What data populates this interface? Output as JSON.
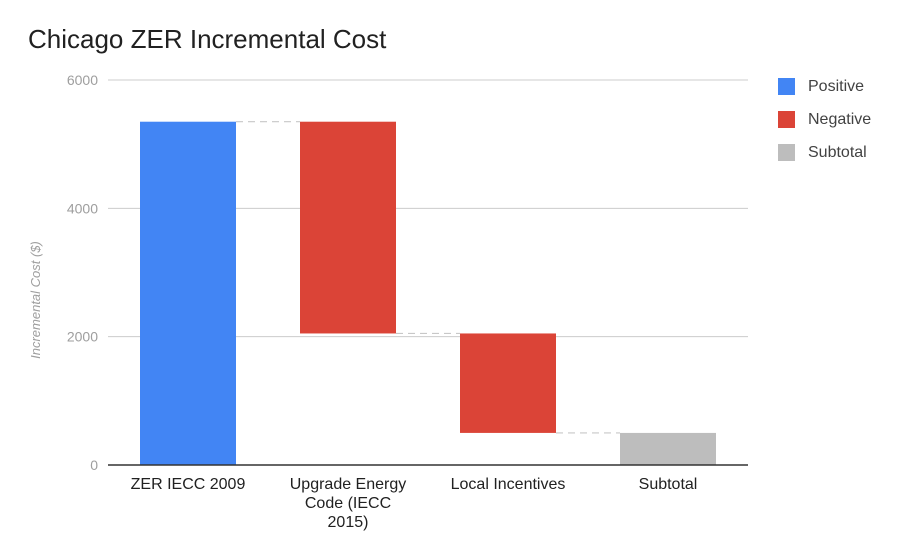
{
  "chart_data": {
    "type": "waterfall",
    "title": "Chicago ZER Incremental Cost",
    "ylabel": "Incremental Cost ($)",
    "xlabel": "",
    "ylim": [
      0,
      6000
    ],
    "yticks": [
      0,
      2000,
      4000,
      6000
    ],
    "grid": true,
    "legend_position": "right",
    "legend": [
      {
        "name": "Positive",
        "color": "#4285f4"
      },
      {
        "name": "Negative",
        "color": "#db4437"
      },
      {
        "name": "Subtotal",
        "color": "#bdbdbd"
      }
    ],
    "categories": [
      {
        "label_lines": [
          "ZER IECC 2009"
        ],
        "kind": "Positive",
        "start": 0,
        "end": 5350
      },
      {
        "label_lines": [
          "Upgrade Energy",
          "Code (IECC",
          "2015)"
        ],
        "kind": "Negative",
        "start": 5350,
        "end": 2050
      },
      {
        "label_lines": [
          "Local Incentives"
        ],
        "kind": "Negative",
        "start": 2050,
        "end": 500
      },
      {
        "label_lines": [
          "Subtotal"
        ],
        "kind": "Subtotal",
        "start": 0,
        "end": 500
      }
    ]
  }
}
